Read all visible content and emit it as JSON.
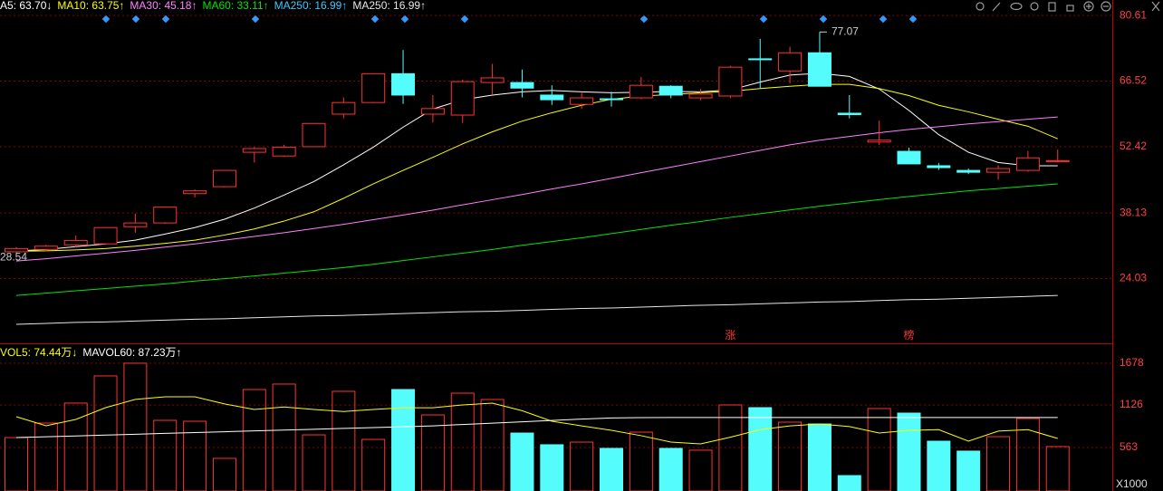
{
  "chart_data": [
    {
      "type": "candlestick",
      "categories": [
        null,
        null,
        null,
        null,
        null,
        null,
        null,
        null,
        null,
        null,
        null,
        null,
        null,
        null,
        null,
        null,
        null,
        null,
        null,
        null,
        null,
        null,
        null,
        null,
        null,
        null,
        null,
        null,
        null,
        null,
        null,
        null,
        null,
        null,
        null,
        null
      ],
      "open": [
        29.8,
        30.3,
        31.3,
        31.5,
        35.2,
        36.0,
        42.3,
        43.8,
        51.2,
        50.4,
        52.4,
        59.4,
        61.9,
        68.1,
        59.4,
        59.2,
        66.2,
        66.2,
        63.5,
        61.5,
        62.7,
        62.9,
        65.4,
        62.9,
        63.3,
        71.3,
        68.7,
        72.6,
        59.6,
        53.4,
        51.4,
        48.3,
        47.3,
        46.9,
        47.3,
        49.2
      ],
      "high": [
        30.8,
        31.3,
        33.3,
        35.0,
        38.0,
        39.5,
        43.2,
        47.3,
        52.3,
        52.8,
        57.5,
        63.0,
        68.2,
        73.2,
        63.5,
        66.8,
        70.2,
        69.0,
        65.6,
        64.0,
        64.2,
        67.4,
        65.6,
        64.8,
        69.8,
        75.6,
        73.9,
        77.07,
        63.5,
        58.0,
        52.2,
        48.9,
        47.7,
        48.4,
        51.5,
        51.8
      ],
      "low": [
        28.54,
        29.9,
        30.8,
        31.3,
        33.9,
        35.8,
        41.5,
        43.6,
        49.0,
        50.2,
        52.3,
        58.5,
        61.8,
        61.6,
        57.6,
        57.5,
        63.5,
        63.0,
        61.4,
        60.5,
        61.0,
        62.6,
        62.8,
        62.4,
        62.8,
        65.0,
        66.0,
        65.4,
        58.5,
        52.8,
        48.7,
        47.4,
        46.5,
        45.3,
        47.0,
        49.0
      ],
      "close": [
        30.5,
        31.0,
        32.2,
        35.0,
        36.0,
        39.4,
        42.9,
        47.3,
        52.0,
        52.3,
        57.4,
        61.9,
        68.1,
        63.5,
        60.6,
        66.4,
        67.2,
        65.0,
        62.5,
        62.9,
        62.6,
        65.6,
        63.5,
        63.7,
        69.5,
        71.1,
        72.6,
        65.4,
        59.3,
        53.8,
        48.7,
        47.9,
        46.9,
        47.7,
        50.0,
        49.4
      ],
      "up_color": "#ff3232",
      "down_color": "#54fcfc",
      "series": [
        {
          "name": "A5: 63.70↓",
          "color": "#ffffff",
          "values": [
            29.98,
            30.3,
            30.9,
            31.5,
            32.3,
            33.6,
            35.0,
            36.8,
            39.2,
            42.0,
            44.9,
            48.5,
            52.3,
            56.6,
            60.5,
            62.5,
            63.5,
            64.2,
            64.5,
            64.2,
            64.0,
            64.1,
            64.3,
            64.2,
            64.6,
            66.3,
            67.8,
            68.2,
            67.5,
            64.8,
            60.2,
            55.0,
            51.2,
            49.0,
            48.3,
            48.3
          ]
        },
        {
          "name": "MA10: 63.75↑",
          "color": "#ffff00",
          "values": [
            29.9,
            30.0,
            30.2,
            30.5,
            31.0,
            31.6,
            32.3,
            33.4,
            34.7,
            36.4,
            38.4,
            41.3,
            44.4,
            47.3,
            50.1,
            53.0,
            55.6,
            57.9,
            59.7,
            61.3,
            62.6,
            63.3,
            63.6,
            64.0,
            64.3,
            64.9,
            65.4,
            65.8,
            65.8,
            64.9,
            63.4,
            61.3,
            59.9,
            58.3,
            56.8,
            54.1
          ]
        },
        {
          "name": "MA30: 45.18↑",
          "color": "#ff80ff",
          "values": [
            27.8,
            28.3,
            28.9,
            29.5,
            30.1,
            30.8,
            31.5,
            32.3,
            33.1,
            33.9,
            34.8,
            35.7,
            36.7,
            37.7,
            38.75,
            39.9,
            41.0,
            42.1,
            43.3,
            44.4,
            45.6,
            46.8,
            48.0,
            49.2,
            50.4,
            51.6,
            52.8,
            53.8,
            54.6,
            55.4,
            56.1,
            56.7,
            57.3,
            57.8,
            58.3,
            58.8
          ]
        },
        {
          "name": "MA60: 33.11↑",
          "color": "#00e600",
          "values": [
            20.4,
            20.9,
            21.4,
            21.9,
            22.4,
            22.9,
            23.5,
            24.0,
            24.6,
            25.2,
            25.8,
            26.4,
            27.1,
            27.9,
            28.7,
            29.5,
            30.3,
            31.2,
            32.0,
            32.8,
            33.7,
            34.6,
            35.5,
            36.3,
            37.2,
            38.0,
            38.8,
            39.6,
            40.3,
            41.0,
            41.7,
            42.3,
            42.9,
            43.4,
            43.9,
            44.4
          ]
        },
        {
          "name": "MA250: 16.99↑",
          "color": "#e6e6e6",
          "values": [
            14.2,
            14.4,
            14.6,
            14.7,
            14.9,
            15.1,
            15.3,
            15.4,
            15.6,
            15.8,
            16.0,
            16.1,
            16.3,
            16.5,
            16.7,
            16.9,
            17.0,
            17.2,
            17.4,
            17.6,
            17.7,
            17.9,
            18.1,
            18.3,
            18.4,
            18.6,
            18.8,
            19.0,
            19.1,
            19.3,
            19.5,
            19.6,
            19.8,
            20.0,
            20.2,
            20.4
          ]
        }
      ],
      "labels_extra": [
        {
          "text": "MA250: 16.99↑",
          "color": "#3fc8ff"
        }
      ],
      "tags": [
        null,
        null,
        null,
        null,
        null,
        null,
        null,
        null,
        null,
        null,
        null,
        null,
        null,
        null,
        null,
        null,
        null,
        null,
        null,
        null,
        null,
        null,
        null,
        null,
        "涨",
        null,
        null,
        null,
        null,
        null,
        "榜",
        null,
        null,
        null,
        null,
        null
      ],
      "ylim": [
        10.3,
        82
      ],
      "yticks": [
        24.03,
        38.13,
        52.42,
        66.52,
        80.61
      ],
      "grid": true
    },
    {
      "type": "bar",
      "categories": [
        null,
        null,
        null,
        null,
        null,
        null,
        null,
        null,
        null,
        null,
        null,
        null,
        null,
        null,
        null,
        null,
        null,
        null,
        null,
        null,
        null,
        null,
        null,
        null,
        null,
        null,
        null,
        null,
        null,
        null,
        null,
        null,
        null,
        null,
        null,
        null
      ],
      "values": [
        695,
        887,
        1151,
        1511,
        1679,
        923,
        911,
        420,
        1331,
        1403,
        731,
        1307,
        671,
        1331,
        995,
        1283,
        1199,
        755,
        600,
        635,
        552,
        767,
        552,
        528,
        1127,
        1091,
        899,
        875,
        192,
        1079,
        1019,
        647,
        516,
        707,
        947,
        576
      ],
      "series": [
        {
          "name": "VOL5: 74.44万↓",
          "color": "#ffff00",
          "values": [
            971,
            851,
            935,
            1091,
            1200,
            1235,
            1235,
            1140,
            1067,
            1100,
            1067,
            1040,
            1067,
            1090,
            1090,
            1127,
            1151,
            1050,
            911,
            850,
            791,
            720,
            635,
            611,
            700,
            800,
            850,
            875,
            840,
            755,
            791,
            800,
            647,
            780,
            800,
            683
          ]
        },
        {
          "name": "MAVOL60: 87.23万↑",
          "color": "#ffffff",
          "values": [
            695,
            706,
            717,
            728,
            739,
            750,
            761,
            772,
            783,
            794,
            805,
            816,
            827,
            838,
            850,
            868,
            886,
            904,
            922,
            940,
            955,
            959,
            960,
            960,
            960,
            960,
            960,
            960,
            960,
            960,
            960,
            960,
            960,
            960,
            960,
            960
          ]
        }
      ],
      "ylabel": "X1000",
      "ylim": [
        0,
        1930
      ],
      "yticks": [
        563,
        1126,
        1678
      ],
      "grid": true
    }
  ]
}
